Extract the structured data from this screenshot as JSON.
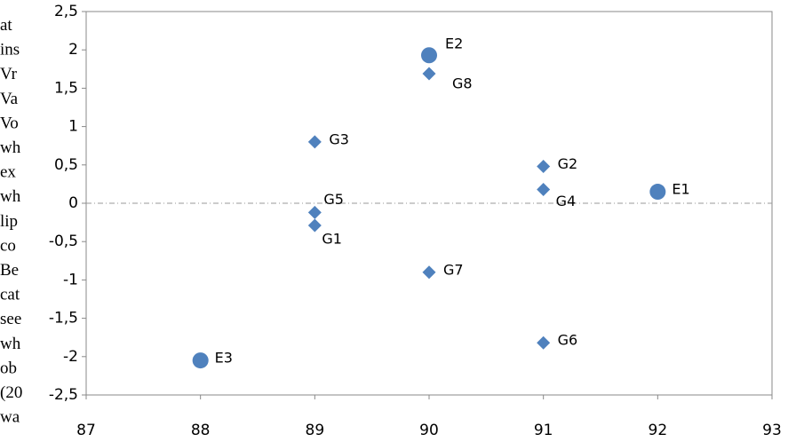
{
  "background_text": [
    "at",
    "ins",
    "Vr",
    "Va",
    "Vo",
    "wh",
    "ex",
    "wh",
    "lip",
    "co",
    "Be",
    "cat",
    "see",
    "wh",
    "ob",
    "(20",
    "wa"
  ],
  "chart_data": {
    "type": "scatter",
    "series": [
      {
        "color": "#4f81bd",
        "marker": "circle",
        "x": [
          90,
          92,
          88
        ],
        "values": [
          1.93,
          0.15,
          -2.05
        ],
        "labels": [
          "E2",
          "E1",
          "E3"
        ]
      },
      {
        "color": "#4f81bd",
        "marker": "diamond",
        "x": [
          89,
          89,
          89,
          90,
          90,
          91,
          91,
          91
        ],
        "values": [
          0.8,
          -0.12,
          -0.29,
          1.69,
          -0.9,
          0.48,
          0.18,
          -1.82
        ],
        "labels": [
          "G3",
          "G5",
          "G1",
          "G8",
          "G7",
          "G2",
          "G4",
          "G6"
        ]
      }
    ],
    "xlim": [
      87,
      93
    ],
    "xticks": [
      87,
      88,
      89,
      90,
      91,
      92,
      93
    ],
    "ylim": [
      -2.5,
      2.5
    ],
    "yticks": [
      {
        "value": -2.5,
        "label": "-2,5"
      },
      -2,
      {
        "value": -1.5,
        "label": "-1,5"
      },
      -1,
      {
        "value": -0.5,
        "label": "-0,5"
      },
      0,
      {
        "value": 0.5,
        "label": "0,5"
      },
      1,
      {
        "value": 1.5,
        "label": "1,5"
      },
      2,
      {
        "value": 2.5,
        "label": "2,5"
      }
    ],
    "reference_line_y": 0
  }
}
